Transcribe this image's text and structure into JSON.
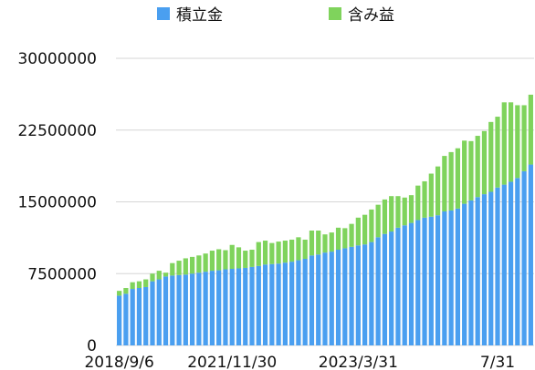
{
  "chart_data": {
    "type": "bar",
    "stacked": true,
    "legend": {
      "position": "top",
      "entries": [
        "積立金",
        "含み益"
      ]
    },
    "colors": {
      "series_0": "#4a9ff0",
      "series_1": "#7fd35c",
      "grid": "#d6d6d6"
    },
    "ylim": [
      0,
      30000000
    ],
    "yticks": [
      0,
      7500000,
      15000000,
      22500000,
      30000000
    ],
    "ytick_labels": [
      "0",
      "7500000",
      "15000000",
      "22500000",
      "30000000"
    ],
    "xtick_labels": [
      {
        "index": 0,
        "label": "2018/9/6"
      },
      {
        "index": 17,
        "label": "2021/11/30"
      },
      {
        "index": 36,
        "label": "2023/3/31"
      },
      {
        "index": 57,
        "label": "7/31"
      }
    ],
    "grid": true,
    "series": [
      {
        "name": "積立金",
        "values": [
          5200000,
          5400000,
          5900000,
          6000000,
          6100000,
          6700000,
          6900000,
          7200000,
          7300000,
          7350000,
          7400000,
          7500000,
          7600000,
          7700000,
          7800000,
          7850000,
          7950000,
          8000000,
          8050000,
          8100000,
          8200000,
          8300000,
          8450000,
          8500000,
          8550000,
          8650000,
          8750000,
          8900000,
          9050000,
          9400000,
          9500000,
          9700000,
          9800000,
          10000000,
          10150000,
          10300000,
          10450000,
          10550000,
          10800000,
          11300000,
          11650000,
          11900000,
          12300000,
          12550000,
          12800000,
          13100000,
          13350000,
          13450000,
          13600000,
          14000000,
          14100000,
          14300000,
          14800000,
          15150000,
          15500000,
          15800000,
          16050000,
          16500000,
          16800000,
          17100000,
          17500000,
          18200000,
          18900000
        ]
      },
      {
        "name": "含み益",
        "values": [
          500000,
          600000,
          700000,
          700000,
          800000,
          800000,
          900000,
          400000,
          1300000,
          1500000,
          1700000,
          1750000,
          1800000,
          1900000,
          2100000,
          2200000,
          2000000,
          2500000,
          2200000,
          1800000,
          1800000,
          2500000,
          2500000,
          2200000,
          2300000,
          2300000,
          2300000,
          2400000,
          2000000,
          2600000,
          2500000,
          1900000,
          2000000,
          2300000,
          2100000,
          2400000,
          2900000,
          3100000,
          3400000,
          3400000,
          3600000,
          3700000,
          3300000,
          2900000,
          2900000,
          3600000,
          3800000,
          4500000,
          5100000,
          5800000,
          6100000,
          6300000,
          6600000,
          6200000,
          6400000,
          6600000,
          7300000,
          7400000,
          8600000,
          8300000,
          7600000,
          6900000,
          7300000
        ]
      }
    ]
  }
}
